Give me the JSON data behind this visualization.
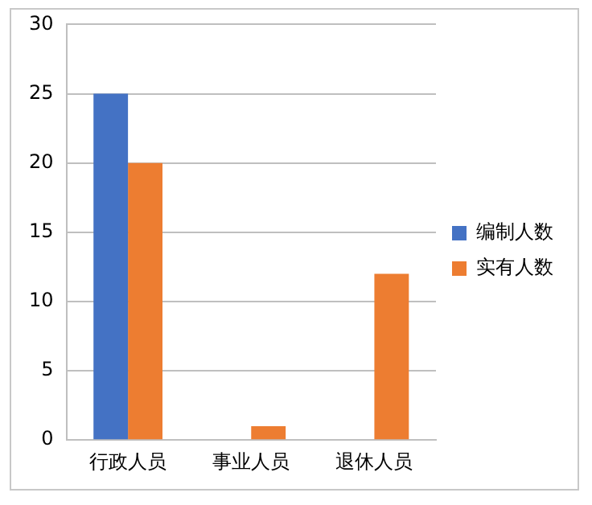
{
  "chart_data": {
    "type": "bar",
    "categories": [
      "行政人员",
      "事业人员",
      "退休人员"
    ],
    "series": [
      {
        "name": "编制人数",
        "color": "#4472c4",
        "values": [
          25,
          null,
          null
        ]
      },
      {
        "name": "实有人数",
        "color": "#ed7d31",
        "values": [
          20,
          1,
          12
        ]
      }
    ],
    "ylim": [
      0,
      30
    ],
    "yticks": [
      0,
      5,
      10,
      15,
      20,
      25,
      30
    ],
    "grid": "y",
    "legend": "right"
  }
}
